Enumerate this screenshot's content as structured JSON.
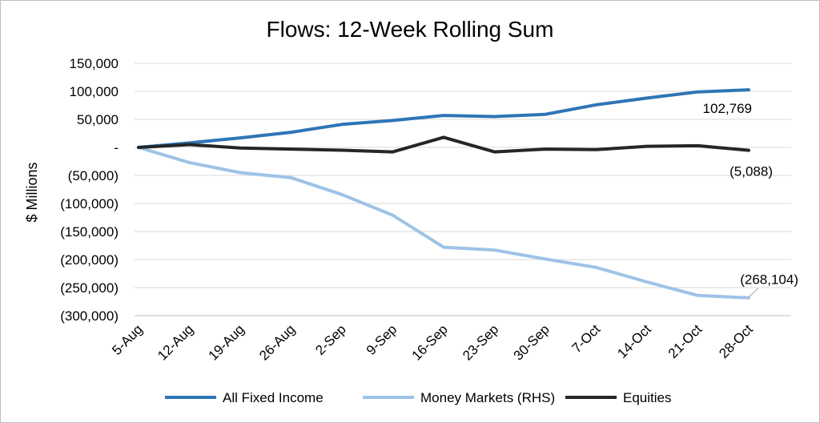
{
  "chart_data": {
    "type": "line",
    "title": "Flows: 12-Week Rolling Sum",
    "xlabel": "",
    "ylabel": "$ Millions",
    "categories": [
      "5-Aug",
      "12-Aug",
      "19-Aug",
      "26-Aug",
      "2-Sep",
      "9-Sep",
      "16-Sep",
      "23-Sep",
      "30-Sep",
      "7-Oct",
      "14-Oct",
      "21-Oct",
      "28-Oct"
    ],
    "ylim": [
      -300000,
      150000
    ],
    "yticks": [
      150000,
      100000,
      50000,
      0,
      -50000,
      -100000,
      -150000,
      -200000,
      -250000,
      -300000
    ],
    "ytick_labels": [
      "150,000",
      "100,000",
      "50,000",
      "-",
      "(50,000)",
      "(100,000)",
      "(150,000)",
      "(200,000)",
      "(250,000)",
      "(300,000)"
    ],
    "grid": true,
    "legend_position": "bottom",
    "series": [
      {
        "name": "All Fixed Income",
        "color": "#2e75b6",
        "values": [
          0,
          8000,
          17000,
          27000,
          41000,
          48000,
          57000,
          55000,
          59000,
          76000,
          88000,
          99000,
          102769
        ]
      },
      {
        "name": "Money Markets (RHS)",
        "color": "#9dc3e6",
        "values": [
          0,
          -27000,
          -45000,
          -54000,
          -84000,
          -121000,
          -178000,
          -183000,
          -199000,
          -214000,
          -240000,
          -264000,
          -268104
        ]
      },
      {
        "name": "Equities",
        "color": "#262626",
        "values": [
          0,
          5000,
          -1000,
          -3000,
          -5000,
          -8000,
          18000,
          -8000,
          -3000,
          -4000,
          2000,
          3000,
          -5088
        ]
      }
    ],
    "annotations": [
      {
        "series": 0,
        "index": 12,
        "text": "102,769"
      },
      {
        "series": 2,
        "index": 12,
        "text": "(5,088)"
      },
      {
        "series": 1,
        "index": 12,
        "text": "(268,104)"
      }
    ]
  }
}
